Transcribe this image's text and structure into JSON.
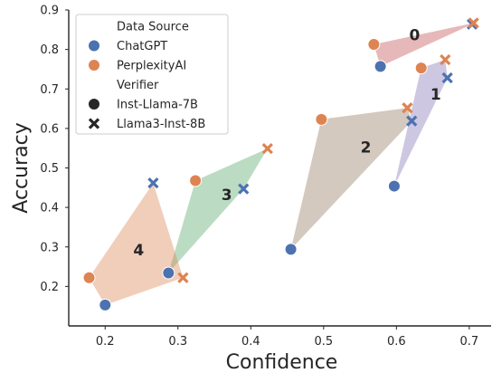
{
  "chart_data": {
    "type": "scatter",
    "xlabel": "Confidence",
    "ylabel": "Accuracy",
    "xlim": [
      0.15,
      0.73
    ],
    "ylim": [
      0.1,
      0.9
    ],
    "xticks": [
      "0.2",
      "0.3",
      "0.4",
      "0.5",
      "0.6",
      "0.7"
    ],
    "yticks": [
      "0.2",
      "0.3",
      "0.4",
      "0.5",
      "0.6",
      "0.7",
      "0.8",
      "0.9"
    ],
    "grid": false,
    "legend": {
      "placement": "top-left",
      "hue_title": "Data Source",
      "style_title": "Verifier",
      "data_sources": [
        {
          "name": "ChatGPT",
          "color": "#4c72b0"
        },
        {
          "name": "PerplexityAI",
          "color": "#dd8452"
        }
      ],
      "verifiers": [
        {
          "name": "Inst-Llama-7B",
          "marker": "circle"
        },
        {
          "name": "Llama3-Inst-8B",
          "marker": "x"
        }
      ]
    },
    "groups": [
      {
        "label": "0",
        "fill": "#c44e52",
        "label_pos": [
          0.625,
          0.835
        ],
        "points": [
          {
            "x": 0.578,
            "y": 0.757,
            "source": "ChatGPT",
            "verifier": "Inst-Llama-7B"
          },
          {
            "x": 0.569,
            "y": 0.813,
            "source": "PerplexityAI",
            "verifier": "Inst-Llama-7B"
          },
          {
            "x": 0.704,
            "y": 0.864,
            "source": "ChatGPT",
            "verifier": "Llama3-Inst-8B"
          },
          {
            "x": 0.706,
            "y": 0.867,
            "source": "PerplexityAI",
            "verifier": "Llama3-Inst-8B"
          }
        ]
      },
      {
        "label": "1",
        "fill": "#8172b3",
        "label_pos": [
          0.654,
          0.685
        ],
        "points": [
          {
            "x": 0.597,
            "y": 0.454,
            "source": "ChatGPT",
            "verifier": "Inst-Llama-7B"
          },
          {
            "x": 0.634,
            "y": 0.753,
            "source": "PerplexityAI",
            "verifier": "Inst-Llama-7B"
          },
          {
            "x": 0.67,
            "y": 0.728,
            "source": "ChatGPT",
            "verifier": "Llama3-Inst-8B"
          },
          {
            "x": 0.667,
            "y": 0.774,
            "source": "PerplexityAI",
            "verifier": "Llama3-Inst-8B"
          }
        ]
      },
      {
        "label": "2",
        "fill": "#937860",
        "label_pos": [
          0.558,
          0.55
        ],
        "points": [
          {
            "x": 0.455,
            "y": 0.294,
            "source": "ChatGPT",
            "verifier": "Inst-Llama-7B"
          },
          {
            "x": 0.497,
            "y": 0.623,
            "source": "PerplexityAI",
            "verifier": "Inst-Llama-7B"
          },
          {
            "x": 0.621,
            "y": 0.619,
            "source": "ChatGPT",
            "verifier": "Llama3-Inst-8B"
          },
          {
            "x": 0.615,
            "y": 0.652,
            "source": "PerplexityAI",
            "verifier": "Llama3-Inst-8B"
          }
        ]
      },
      {
        "label": "3",
        "fill": "#55a868",
        "label_pos": [
          0.367,
          0.43
        ],
        "points": [
          {
            "x": 0.287,
            "y": 0.234,
            "source": "ChatGPT",
            "verifier": "Inst-Llama-7B"
          },
          {
            "x": 0.324,
            "y": 0.468,
            "source": "PerplexityAI",
            "verifier": "Inst-Llama-7B"
          },
          {
            "x": 0.39,
            "y": 0.447,
            "source": "ChatGPT",
            "verifier": "Llama3-Inst-8B"
          },
          {
            "x": 0.423,
            "y": 0.549,
            "source": "PerplexityAI",
            "verifier": "Llama3-Inst-8B"
          }
        ]
      },
      {
        "label": "4",
        "fill": "#dd8452",
        "label_pos": [
          0.246,
          0.29
        ],
        "points": [
          {
            "x": 0.2,
            "y": 0.153,
            "source": "ChatGPT",
            "verifier": "Inst-Llama-7B"
          },
          {
            "x": 0.178,
            "y": 0.222,
            "source": "PerplexityAI",
            "verifier": "Inst-Llama-7B"
          },
          {
            "x": 0.266,
            "y": 0.462,
            "source": "ChatGPT",
            "verifier": "Llama3-Inst-8B"
          },
          {
            "x": 0.307,
            "y": 0.222,
            "source": "PerplexityAI",
            "verifier": "Llama3-Inst-8B"
          }
        ]
      }
    ]
  }
}
